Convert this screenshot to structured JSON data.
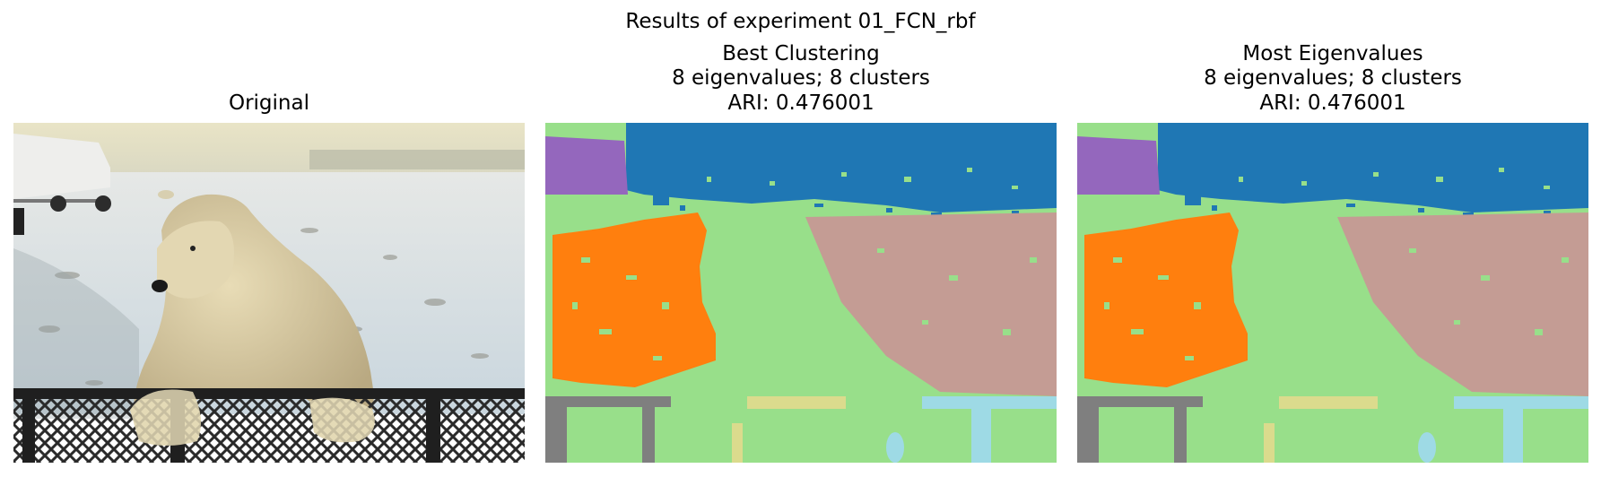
{
  "figure": {
    "suptitle": "Results of experiment 01_FCN_rbf"
  },
  "panels": [
    {
      "title_lines": [
        "Original"
      ]
    },
    {
      "title_lines": [
        "Best Clustering",
        "8 eigenvalues; 8 clusters",
        "ARI: 0.476001"
      ]
    },
    {
      "title_lines": [
        "Most Eigenvalues",
        "8 eigenvalues; 8 clusters",
        "ARI: 0.476001"
      ]
    }
  ],
  "cluster_colors": {
    "sky": "#1f77b4",
    "snow": "#98df8a",
    "truck": "#9467bd",
    "left_ground": "#ff7f0e",
    "right_ground": "#c49c94",
    "fence": "#7f7f7f",
    "khaki": "#dbdb8d",
    "light_blue": "#9edae5"
  }
}
